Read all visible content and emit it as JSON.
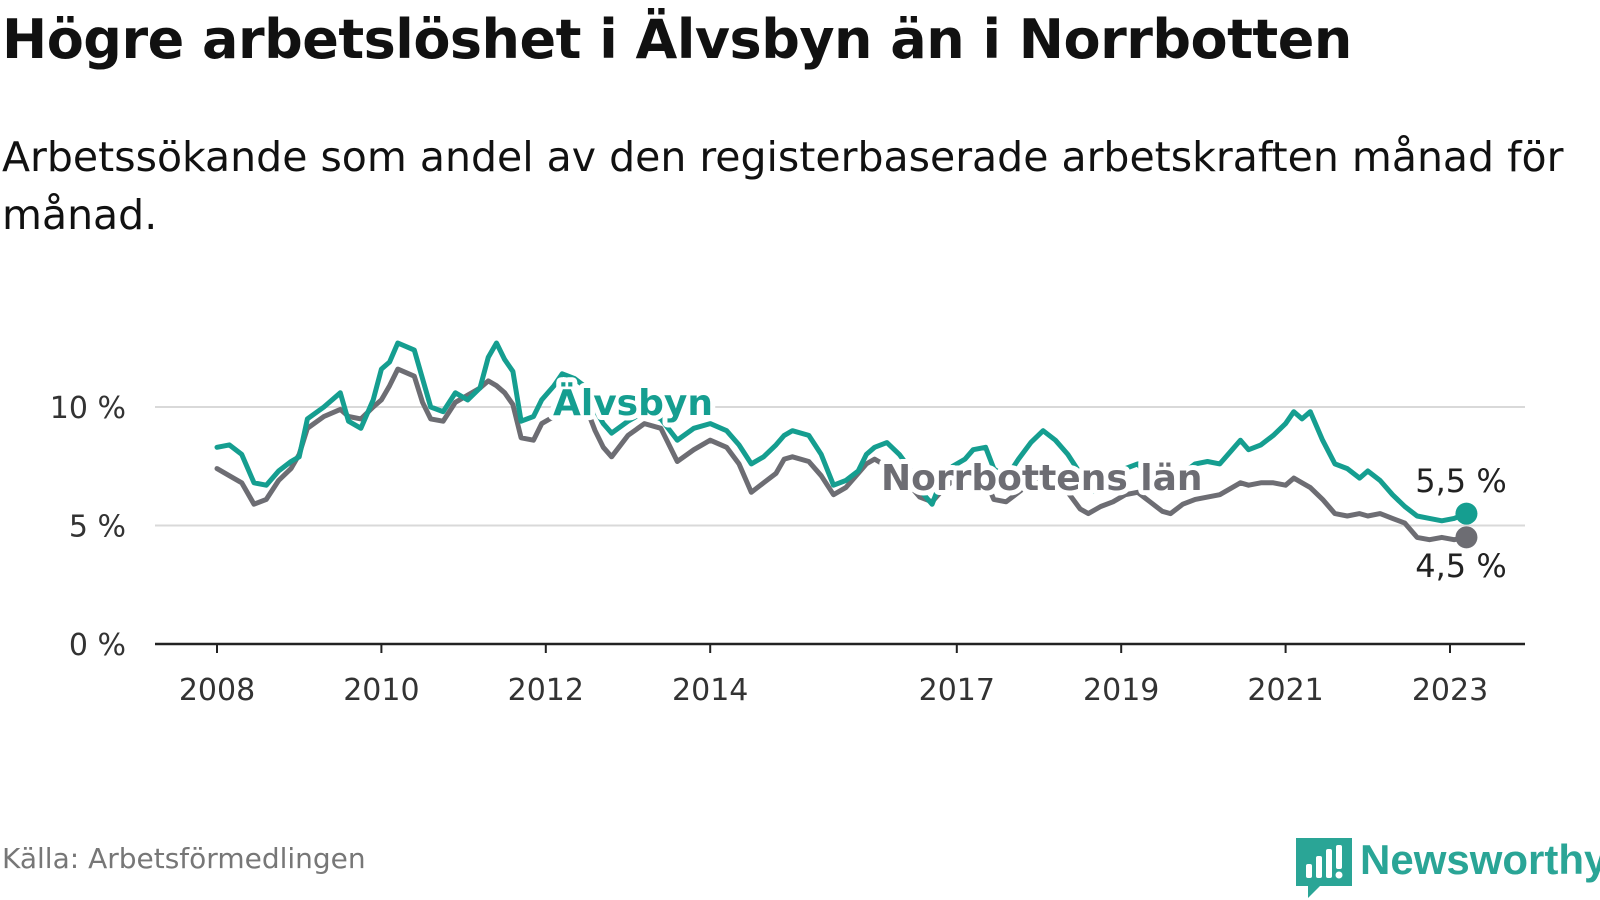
{
  "title": "Högre arbetslöshet i Älvsbyn än i Norrbotten",
  "subtitle": "Arbetssökande som andel av den registerbaserade arbetskraften månad för månad.",
  "source": "Källa: Arbetsförmedlingen",
  "brand": {
    "name": "Newsworthy"
  },
  "colors": {
    "alvsbyn": "#159e90",
    "norrbotten": "#6d6d73",
    "grid": "#d9d9d9",
    "axis": "#222222",
    "brand": "#2aa596"
  },
  "chart_data": {
    "type": "line",
    "title": "Högre arbetslöshet i Älvsbyn än i Norrbotten",
    "xlabel": "",
    "ylabel": "",
    "ylim": [
      0,
      13
    ],
    "xlim": [
      2007.5,
      2023.9
    ],
    "grid": true,
    "y_ticks": [
      0,
      5,
      10
    ],
    "y_tick_labels": [
      "0 %",
      "5 %",
      "10 %"
    ],
    "x_ticks": [
      2008,
      2010,
      2012,
      2014,
      2017,
      2019,
      2021,
      2023
    ],
    "x_tick_labels": [
      "2008",
      "2010",
      "2012",
      "2014",
      "2017",
      "2019",
      "2021",
      "2023"
    ],
    "series": [
      {
        "name": "Älvsbyn",
        "label": "Älvsbyn",
        "end_label": "5,5 %",
        "color": "#159e90",
        "points": [
          [
            2008.0,
            8.3
          ],
          [
            2008.15,
            8.4
          ],
          [
            2008.3,
            8.0
          ],
          [
            2008.45,
            6.8
          ],
          [
            2008.6,
            6.7
          ],
          [
            2008.75,
            7.3
          ],
          [
            2008.9,
            7.7
          ],
          [
            2009.0,
            7.9
          ],
          [
            2009.1,
            9.5
          ],
          [
            2009.3,
            10.0
          ],
          [
            2009.5,
            10.6
          ],
          [
            2009.6,
            9.4
          ],
          [
            2009.75,
            9.1
          ],
          [
            2009.9,
            10.3
          ],
          [
            2010.0,
            11.6
          ],
          [
            2010.1,
            11.9
          ],
          [
            2010.2,
            12.7
          ],
          [
            2010.4,
            12.4
          ],
          [
            2010.5,
            11.2
          ],
          [
            2010.6,
            10.0
          ],
          [
            2010.75,
            9.8
          ],
          [
            2010.9,
            10.6
          ],
          [
            2011.05,
            10.3
          ],
          [
            2011.2,
            10.8
          ],
          [
            2011.3,
            12.1
          ],
          [
            2011.4,
            12.7
          ],
          [
            2011.5,
            12.0
          ],
          [
            2011.6,
            11.5
          ],
          [
            2011.7,
            9.4
          ],
          [
            2011.85,
            9.6
          ],
          [
            2011.95,
            10.3
          ],
          [
            2012.1,
            10.9
          ],
          [
            2012.2,
            11.4
          ],
          [
            2012.35,
            11.2
          ],
          [
            2012.5,
            10.8
          ],
          [
            2012.6,
            9.9
          ],
          [
            2012.7,
            9.3
          ],
          [
            2012.8,
            8.9
          ],
          [
            2013.0,
            9.4
          ],
          [
            2013.2,
            9.8
          ],
          [
            2013.4,
            9.5
          ],
          [
            2013.6,
            8.6
          ],
          [
            2013.8,
            9.1
          ],
          [
            2014.0,
            9.3
          ],
          [
            2014.2,
            9.0
          ],
          [
            2014.35,
            8.4
          ],
          [
            2014.5,
            7.6
          ],
          [
            2014.65,
            7.9
          ],
          [
            2014.8,
            8.4
          ],
          [
            2014.9,
            8.8
          ],
          [
            2015.0,
            9.0
          ],
          [
            2015.2,
            8.8
          ],
          [
            2015.35,
            8.0
          ],
          [
            2015.5,
            6.7
          ],
          [
            2015.65,
            6.9
          ],
          [
            2015.8,
            7.3
          ],
          [
            2015.9,
            8.0
          ],
          [
            2016.0,
            8.3
          ],
          [
            2016.15,
            8.5
          ],
          [
            2016.3,
            8.0
          ],
          [
            2016.45,
            7.3
          ],
          [
            2016.55,
            6.5
          ],
          [
            2016.7,
            5.9
          ],
          [
            2016.8,
            6.8
          ],
          [
            2016.95,
            7.5
          ],
          [
            2017.1,
            7.8
          ],
          [
            2017.2,
            8.2
          ],
          [
            2017.35,
            8.3
          ],
          [
            2017.45,
            7.4
          ],
          [
            2017.6,
            7.0
          ],
          [
            2017.75,
            7.8
          ],
          [
            2017.9,
            8.5
          ],
          [
            2018.05,
            9.0
          ],
          [
            2018.2,
            8.6
          ],
          [
            2018.35,
            8.0
          ],
          [
            2018.5,
            7.2
          ],
          [
            2018.6,
            6.4
          ],
          [
            2018.75,
            6.5
          ],
          [
            2018.9,
            6.9
          ],
          [
            2019.05,
            7.4
          ],
          [
            2019.2,
            7.6
          ],
          [
            2019.35,
            7.0
          ],
          [
            2019.5,
            6.5
          ],
          [
            2019.6,
            6.7
          ],
          [
            2019.75,
            7.2
          ],
          [
            2019.9,
            7.6
          ],
          [
            2020.05,
            7.7
          ],
          [
            2020.2,
            7.6
          ],
          [
            2020.35,
            8.2
          ],
          [
            2020.45,
            8.6
          ],
          [
            2020.55,
            8.2
          ],
          [
            2020.7,
            8.4
          ],
          [
            2020.85,
            8.8
          ],
          [
            2021.0,
            9.3
          ],
          [
            2021.1,
            9.8
          ],
          [
            2021.2,
            9.5
          ],
          [
            2021.3,
            9.8
          ],
          [
            2021.45,
            8.6
          ],
          [
            2021.6,
            7.6
          ],
          [
            2021.75,
            7.4
          ],
          [
            2021.9,
            7.0
          ],
          [
            2022.0,
            7.3
          ],
          [
            2022.15,
            6.9
          ],
          [
            2022.3,
            6.3
          ],
          [
            2022.45,
            5.8
          ],
          [
            2022.6,
            5.4
          ],
          [
            2022.75,
            5.3
          ],
          [
            2022.9,
            5.2
          ],
          [
            2023.05,
            5.3
          ],
          [
            2023.2,
            5.5
          ]
        ]
      },
      {
        "name": "Norrbottens län",
        "label": "Norrbottens län",
        "end_label": "4,5 %",
        "color": "#6d6d73",
        "points": [
          [
            2008.0,
            7.4
          ],
          [
            2008.15,
            7.1
          ],
          [
            2008.3,
            6.8
          ],
          [
            2008.45,
            5.9
          ],
          [
            2008.6,
            6.1
          ],
          [
            2008.75,
            6.9
          ],
          [
            2008.9,
            7.4
          ],
          [
            2009.0,
            8.0
          ],
          [
            2009.1,
            9.1
          ],
          [
            2009.3,
            9.6
          ],
          [
            2009.5,
            9.9
          ],
          [
            2009.6,
            9.6
          ],
          [
            2009.75,
            9.5
          ],
          [
            2009.9,
            10.0
          ],
          [
            2010.0,
            10.3
          ],
          [
            2010.1,
            10.9
          ],
          [
            2010.2,
            11.6
          ],
          [
            2010.4,
            11.3
          ],
          [
            2010.5,
            10.2
          ],
          [
            2010.6,
            9.5
          ],
          [
            2010.75,
            9.4
          ],
          [
            2010.9,
            10.2
          ],
          [
            2011.05,
            10.5
          ],
          [
            2011.2,
            10.8
          ],
          [
            2011.3,
            11.1
          ],
          [
            2011.4,
            10.9
          ],
          [
            2011.5,
            10.6
          ],
          [
            2011.6,
            10.1
          ],
          [
            2011.7,
            8.7
          ],
          [
            2011.85,
            8.6
          ],
          [
            2011.95,
            9.3
          ],
          [
            2012.1,
            9.6
          ],
          [
            2012.2,
            10.1
          ],
          [
            2012.35,
            10.3
          ],
          [
            2012.5,
            9.9
          ],
          [
            2012.6,
            9.0
          ],
          [
            2012.7,
            8.3
          ],
          [
            2012.8,
            7.9
          ],
          [
            2013.0,
            8.8
          ],
          [
            2013.2,
            9.3
          ],
          [
            2013.4,
            9.1
          ],
          [
            2013.6,
            7.7
          ],
          [
            2013.8,
            8.2
          ],
          [
            2014.0,
            8.6
          ],
          [
            2014.2,
            8.3
          ],
          [
            2014.35,
            7.6
          ],
          [
            2014.5,
            6.4
          ],
          [
            2014.65,
            6.8
          ],
          [
            2014.8,
            7.2
          ],
          [
            2014.9,
            7.8
          ],
          [
            2015.0,
            7.9
          ],
          [
            2015.2,
            7.7
          ],
          [
            2015.35,
            7.1
          ],
          [
            2015.5,
            6.3
          ],
          [
            2015.65,
            6.6
          ],
          [
            2015.8,
            7.2
          ],
          [
            2015.9,
            7.6
          ],
          [
            2016.0,
            7.8
          ],
          [
            2016.15,
            7.5
          ],
          [
            2016.3,
            7.0
          ],
          [
            2016.45,
            6.6
          ],
          [
            2016.55,
            6.2
          ],
          [
            2016.7,
            6.0
          ],
          [
            2016.8,
            6.4
          ],
          [
            2016.95,
            6.9
          ],
          [
            2017.1,
            7.0
          ],
          [
            2017.2,
            7.1
          ],
          [
            2017.35,
            6.9
          ],
          [
            2017.45,
            6.1
          ],
          [
            2017.6,
            6.0
          ],
          [
            2017.75,
            6.4
          ],
          [
            2017.9,
            6.8
          ],
          [
            2018.05,
            7.0
          ],
          [
            2018.2,
            6.7
          ],
          [
            2018.35,
            6.4
          ],
          [
            2018.5,
            5.7
          ],
          [
            2018.6,
            5.5
          ],
          [
            2018.75,
            5.8
          ],
          [
            2018.9,
            6.0
          ],
          [
            2019.05,
            6.3
          ],
          [
            2019.2,
            6.4
          ],
          [
            2019.35,
            6.0
          ],
          [
            2019.5,
            5.6
          ],
          [
            2019.6,
            5.5
          ],
          [
            2019.75,
            5.9
          ],
          [
            2019.9,
            6.1
          ],
          [
            2020.05,
            6.2
          ],
          [
            2020.2,
            6.3
          ],
          [
            2020.35,
            6.6
          ],
          [
            2020.45,
            6.8
          ],
          [
            2020.55,
            6.7
          ],
          [
            2020.7,
            6.8
          ],
          [
            2020.85,
            6.8
          ],
          [
            2021.0,
            6.7
          ],
          [
            2021.1,
            7.0
          ],
          [
            2021.2,
            6.8
          ],
          [
            2021.3,
            6.6
          ],
          [
            2021.45,
            6.1
          ],
          [
            2021.6,
            5.5
          ],
          [
            2021.75,
            5.4
          ],
          [
            2021.9,
            5.5
          ],
          [
            2022.0,
            5.4
          ],
          [
            2022.15,
            5.5
          ],
          [
            2022.3,
            5.3
          ],
          [
            2022.45,
            5.1
          ],
          [
            2022.6,
            4.5
          ],
          [
            2022.75,
            4.4
          ],
          [
            2022.9,
            4.5
          ],
          [
            2023.05,
            4.4
          ],
          [
            2023.2,
            4.5
          ]
        ]
      }
    ]
  }
}
